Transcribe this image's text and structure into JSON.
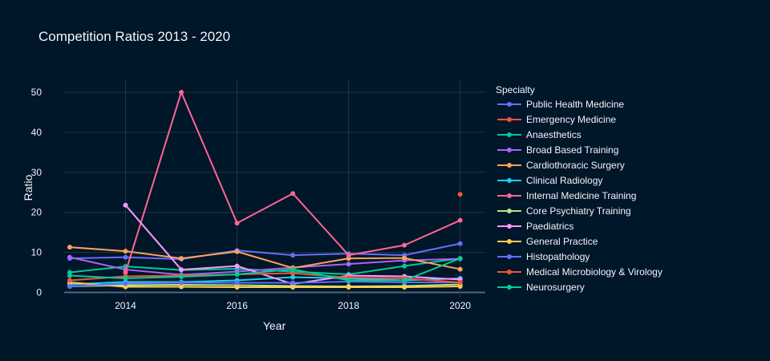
{
  "chart_data": {
    "type": "line",
    "title": "Competition Ratios 2013 - 2020",
    "xlabel": "Year",
    "ylabel": "Ratio",
    "xlim": [
      2012.9,
      2020.45
    ],
    "ylim": [
      -1.5,
      53
    ],
    "xticks": [
      2014,
      2016,
      2018,
      2020
    ],
    "yticks": [
      0,
      10,
      20,
      30,
      40,
      50
    ],
    "grid": true,
    "legend_title": "Specialty",
    "legend_position": "right",
    "x": [
      2013,
      2014,
      2015,
      2016,
      2017,
      2018,
      2019,
      2020
    ],
    "series": [
      {
        "name": "Public Health Medicine",
        "color": "#636efa",
        "values": [
          8.5,
          8.8,
          8.3,
          10.5,
          9.3,
          9.7,
          9.3,
          12.2
        ]
      },
      {
        "name": "Emergency Medicine",
        "color": "#EF553B",
        "values": [
          null,
          null,
          null,
          null,
          null,
          null,
          null,
          24.5
        ]
      },
      {
        "name": "Anaesthetics",
        "color": "#00cc96",
        "values": [
          5.0,
          6.5,
          5.6,
          5.9,
          5.2,
          4.5,
          6.6,
          8.5
        ]
      },
      {
        "name": "Broad Based Training",
        "color": "#ab63fa",
        "values": [
          8.8,
          5.7,
          4.4,
          5.2,
          6.2,
          7.1,
          8.0,
          8.4
        ]
      },
      {
        "name": "Cardiothoracic Surgery",
        "color": "#FFA15A",
        "values": [
          11.3,
          10.3,
          8.5,
          10.2,
          6.1,
          8.5,
          8.6,
          5.8
        ]
      },
      {
        "name": "Clinical Radiology",
        "color": "#19d3f3",
        "values": [
          2.0,
          2.6,
          2.6,
          3.0,
          3.8,
          3.5,
          3.0,
          3.5
        ]
      },
      {
        "name": "Internal Medicine Training",
        "color": "#FF6692",
        "values": [
          null,
          5.0,
          50.0,
          17.3,
          24.7,
          9.3,
          11.8,
          18.0
        ]
      },
      {
        "name": "Core Psychiatry Training",
        "color": "#B6E880",
        "values": [
          1.5,
          1.8,
          1.9,
          1.8,
          1.6,
          1.5,
          1.6,
          2.0
        ]
      },
      {
        "name": "Paediatrics",
        "color": "#FF97FF",
        "values": [
          null,
          21.8,
          5.7,
          6.6,
          2.1,
          4.2,
          4.0,
          3.2
        ]
      },
      {
        "name": "General Practice",
        "color": "#FECB52",
        "values": [
          2.5,
          1.4,
          1.4,
          1.3,
          1.3,
          1.3,
          1.3,
          1.5
        ]
      },
      {
        "name": "Histopathology",
        "color": "#636efa",
        "values": [
          1.5,
          2.2,
          2.4,
          2.4,
          2.4,
          2.7,
          2.5,
          2.5
        ]
      },
      {
        "name": "Medical Microbiology & Virology",
        "color": "#EF553B",
        "values": [
          3.0,
          4.0,
          4.2,
          4.5,
          4.8,
          3.7,
          3.5,
          2.5
        ]
      },
      {
        "name": "Neurosurgery",
        "color": "#00cc96",
        "values": [
          4.2,
          3.5,
          3.9,
          4.5,
          5.8,
          3.0,
          3.0,
          8.5
        ]
      }
    ]
  }
}
